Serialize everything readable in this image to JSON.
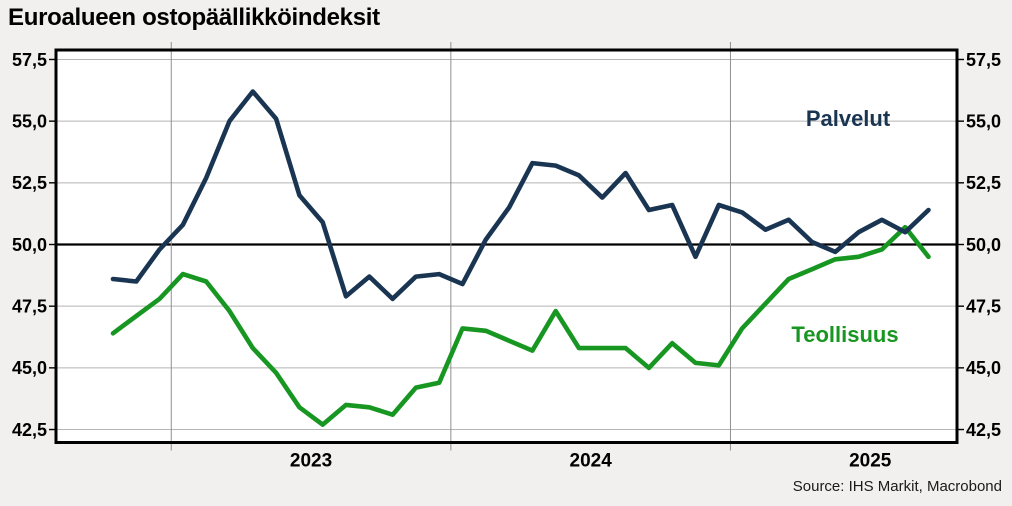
{
  "title": "Euroalueen ostopäällikköindeksit",
  "source_note": "Source: IHS Markit, Macrobond",
  "colors": {
    "background": "#f1f0ee",
    "plot_background": "#ffffff",
    "frame": "#000000",
    "gridline": "#b5b5b5",
    "year_gridline": "#8f8f8f",
    "reference_line": "#000000",
    "services_line": "#1a3552",
    "manufacturing_line": "#189622"
  },
  "chart_data": {
    "type": "line",
    "title": "Euroalueen ostopäällikköindeksit",
    "x": [
      "2022-10",
      "2022-11",
      "2022-12",
      "2023-01",
      "2023-02",
      "2023-03",
      "2023-04",
      "2023-05",
      "2023-06",
      "2023-07",
      "2023-08",
      "2023-09",
      "2023-10",
      "2023-11",
      "2023-12",
      "2024-01",
      "2024-02",
      "2024-03",
      "2024-04",
      "2024-05",
      "2024-06",
      "2024-07",
      "2024-08",
      "2024-09",
      "2024-10",
      "2024-11",
      "2024-12",
      "2025-01",
      "2025-02",
      "2025-03",
      "2025-04",
      "2025-05",
      "2025-06",
      "2025-07",
      "2025-08",
      "2025-09"
    ],
    "series": [
      {
        "name": "Palvelut",
        "color": "#1a3552",
        "values": [
          48.6,
          48.5,
          49.8,
          50.8,
          52.7,
          55.0,
          56.2,
          55.1,
          52.0,
          50.9,
          47.9,
          48.7,
          47.8,
          48.7,
          48.8,
          48.4,
          50.2,
          51.5,
          53.3,
          53.2,
          52.8,
          51.9,
          52.9,
          51.4,
          51.6,
          49.5,
          51.6,
          51.3,
          50.6,
          51.0,
          50.1,
          49.7,
          50.5,
          51.0,
          50.5,
          51.4
        ]
      },
      {
        "name": "Teollisuus",
        "color": "#189622",
        "values": [
          46.4,
          47.1,
          47.8,
          48.8,
          48.5,
          47.3,
          45.8,
          44.8,
          43.4,
          42.7,
          43.5,
          43.4,
          43.1,
          44.2,
          44.4,
          46.6,
          46.5,
          46.1,
          45.7,
          47.3,
          45.8,
          45.8,
          45.8,
          45.0,
          46.0,
          45.2,
          45.1,
          46.6,
          47.6,
          48.6,
          49.0,
          49.4,
          49.5,
          49.8,
          50.7,
          49.5
        ]
      }
    ],
    "y_axis": {
      "min": 42.5,
      "max": 57.5,
      "step": 2.5,
      "tick_labels": [
        "57,5",
        "55,0",
        "52,5",
        "50,0",
        "47,5",
        "45,0",
        "42,5"
      ],
      "reference_line": 50.0,
      "labels_on_both_sides": true
    },
    "x_axis": {
      "year_labels": [
        "2023",
        "2024",
        "2025"
      ],
      "year_start_indices": [
        3,
        15,
        27
      ]
    },
    "grid": true,
    "legend_position": "inline-labels"
  }
}
